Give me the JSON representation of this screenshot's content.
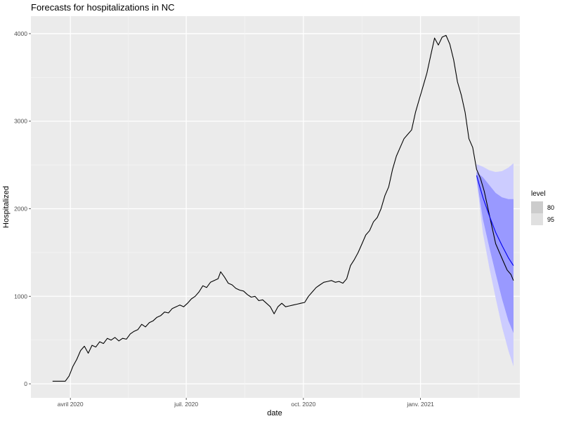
{
  "chart_data": {
    "type": "line",
    "title": "Forecasts for hospitalizations in NC",
    "xlabel": "date",
    "ylabel": "Hospitalized",
    "x_range": [
      "2020-03-01",
      "2021-03-20"
    ],
    "ylim": [
      -160,
      4200
    ],
    "x_ticks": [
      {
        "date": "2020-04-01",
        "label": "avril 2020"
      },
      {
        "date": "2020-07-01",
        "label": "juil. 2020"
      },
      {
        "date": "2020-10-01",
        "label": "oct. 2020"
      },
      {
        "date": "2021-01-01",
        "label": "janv. 2021"
      }
    ],
    "y_ticks": [
      0,
      1000,
      2000,
      3000,
      4000
    ],
    "grid": true,
    "legend": {
      "title": "level",
      "position": "right",
      "entries": [
        {
          "label": "80",
          "color": "#cccccc"
        },
        {
          "label": "95",
          "color": "#e0e0e0"
        }
      ]
    },
    "colors": {
      "panel": "#ebebeb",
      "observed": "#000000",
      "forecast": "#0000ee",
      "band80": "#9999ff",
      "band95": "#ccccff"
    },
    "series": [
      {
        "type": "line",
        "values": [
          [
            "2020-03-18",
            30
          ],
          [
            "2020-03-28",
            30
          ],
          [
            "2020-03-31",
            90
          ],
          [
            "2020-04-03",
            200
          ],
          [
            "2020-04-06",
            280
          ],
          [
            "2020-04-09",
            380
          ],
          [
            "2020-04-12",
            430
          ],
          [
            "2020-04-15",
            350
          ],
          [
            "2020-04-18",
            440
          ],
          [
            "2020-04-21",
            420
          ],
          [
            "2020-04-24",
            480
          ],
          [
            "2020-04-27",
            460
          ],
          [
            "2020-04-30",
            520
          ],
          [
            "2020-05-03",
            500
          ],
          [
            "2020-05-06",
            530
          ],
          [
            "2020-05-09",
            490
          ],
          [
            "2020-05-12",
            520
          ],
          [
            "2020-05-15",
            510
          ],
          [
            "2020-05-18",
            570
          ],
          [
            "2020-05-21",
            600
          ],
          [
            "2020-05-24",
            620
          ],
          [
            "2020-05-27",
            680
          ],
          [
            "2020-05-30",
            650
          ],
          [
            "2020-06-02",
            700
          ],
          [
            "2020-06-05",
            720
          ],
          [
            "2020-06-08",
            760
          ],
          [
            "2020-06-11",
            780
          ],
          [
            "2020-06-14",
            820
          ],
          [
            "2020-06-17",
            810
          ],
          [
            "2020-06-20",
            860
          ],
          [
            "2020-06-23",
            880
          ],
          [
            "2020-06-26",
            900
          ],
          [
            "2020-06-29",
            880
          ],
          [
            "2020-07-02",
            920
          ],
          [
            "2020-07-05",
            970
          ],
          [
            "2020-07-08",
            1000
          ],
          [
            "2020-07-11",
            1050
          ],
          [
            "2020-07-14",
            1120
          ],
          [
            "2020-07-17",
            1100
          ],
          [
            "2020-07-20",
            1160
          ],
          [
            "2020-07-23",
            1180
          ],
          [
            "2020-07-26",
            1200
          ],
          [
            "2020-07-28",
            1280
          ],
          [
            "2020-07-31",
            1220
          ],
          [
            "2020-08-03",
            1150
          ],
          [
            "2020-08-06",
            1130
          ],
          [
            "2020-08-09",
            1090
          ],
          [
            "2020-08-12",
            1070
          ],
          [
            "2020-08-15",
            1060
          ],
          [
            "2020-08-18",
            1020
          ],
          [
            "2020-08-21",
            990
          ],
          [
            "2020-08-24",
            1000
          ],
          [
            "2020-08-27",
            950
          ],
          [
            "2020-08-30",
            960
          ],
          [
            "2020-09-02",
            920
          ],
          [
            "2020-09-05",
            880
          ],
          [
            "2020-09-08",
            800
          ],
          [
            "2020-09-11",
            880
          ],
          [
            "2020-09-14",
            920
          ],
          [
            "2020-09-17",
            880
          ],
          [
            "2020-09-20",
            890
          ],
          [
            "2020-09-23",
            900
          ],
          [
            "2020-09-26",
            910
          ],
          [
            "2020-09-29",
            920
          ],
          [
            "2020-10-02",
            930
          ],
          [
            "2020-10-05",
            1000
          ],
          [
            "2020-10-08",
            1050
          ],
          [
            "2020-10-11",
            1100
          ],
          [
            "2020-10-14",
            1130
          ],
          [
            "2020-10-17",
            1160
          ],
          [
            "2020-10-20",
            1170
          ],
          [
            "2020-10-23",
            1180
          ],
          [
            "2020-10-26",
            1160
          ],
          [
            "2020-10-29",
            1170
          ],
          [
            "2020-11-01",
            1150
          ],
          [
            "2020-11-04",
            1200
          ],
          [
            "2020-11-07",
            1350
          ],
          [
            "2020-11-10",
            1420
          ],
          [
            "2020-11-13",
            1500
          ],
          [
            "2020-11-16",
            1600
          ],
          [
            "2020-11-19",
            1700
          ],
          [
            "2020-11-22",
            1750
          ],
          [
            "2020-11-25",
            1850
          ],
          [
            "2020-11-28",
            1900
          ],
          [
            "2020-12-01",
            2000
          ],
          [
            "2020-12-04",
            2150
          ],
          [
            "2020-12-07",
            2250
          ],
          [
            "2020-12-10",
            2450
          ],
          [
            "2020-12-13",
            2600
          ],
          [
            "2020-12-16",
            2700
          ],
          [
            "2020-12-19",
            2800
          ],
          [
            "2020-12-22",
            2850
          ],
          [
            "2020-12-25",
            2900
          ],
          [
            "2020-12-28",
            3100
          ],
          [
            "2020-12-31",
            3250
          ],
          [
            "2021-01-03",
            3400
          ],
          [
            "2021-01-06",
            3550
          ],
          [
            "2021-01-09",
            3750
          ],
          [
            "2021-01-12",
            3950
          ],
          [
            "2021-01-15",
            3870
          ],
          [
            "2021-01-18",
            3960
          ],
          [
            "2021-01-21",
            3980
          ],
          [
            "2021-01-24",
            3880
          ],
          [
            "2021-01-27",
            3700
          ],
          [
            "2021-01-30",
            3450
          ],
          [
            "2021-02-02",
            3300
          ],
          [
            "2021-02-05",
            3100
          ],
          [
            "2021-02-08",
            2800
          ],
          [
            "2021-02-11",
            2700
          ],
          [
            "2021-02-14",
            2450
          ],
          [
            "2021-02-17",
            2350
          ],
          [
            "2021-02-20",
            2200
          ],
          [
            "2021-02-23",
            2000
          ],
          [
            "2021-02-26",
            1800
          ],
          [
            "2021-03-01",
            1600
          ],
          [
            "2021-03-04",
            1500
          ],
          [
            "2021-03-07",
            1400
          ],
          [
            "2021-03-10",
            1300
          ],
          [
            "2021-03-13",
            1250
          ],
          [
            "2021-03-15",
            1180
          ]
        ]
      },
      {
        "type": "line",
        "values": [
          [
            "2021-02-14",
            2380
          ],
          [
            "2021-02-19",
            2130
          ],
          [
            "2021-02-24",
            1920
          ],
          [
            "2021-03-01",
            1730
          ],
          [
            "2021-03-06",
            1580
          ],
          [
            "2021-03-11",
            1440
          ],
          [
            "2021-03-15",
            1350
          ]
        ]
      },
      {
        "type": "area",
        "level": "80",
        "values": [
          [
            "2021-02-14",
            2350,
            2420
          ],
          [
            "2021-02-19",
            1880,
            2360
          ],
          [
            "2021-02-24",
            1560,
            2270
          ],
          [
            "2021-03-01",
            1260,
            2180
          ],
          [
            "2021-03-06",
            970,
            2130
          ],
          [
            "2021-03-11",
            720,
            2110
          ],
          [
            "2021-03-15",
            580,
            2110
          ]
        ]
      },
      {
        "type": "area",
        "level": "95",
        "values": [
          [
            "2021-02-14",
            2330,
            2510
          ],
          [
            "2021-02-19",
            1720,
            2480
          ],
          [
            "2021-02-24",
            1330,
            2440
          ],
          [
            "2021-03-01",
            980,
            2420
          ],
          [
            "2021-03-06",
            650,
            2430
          ],
          [
            "2021-03-11",
            380,
            2470
          ],
          [
            "2021-03-15",
            200,
            2520
          ]
        ]
      }
    ]
  }
}
